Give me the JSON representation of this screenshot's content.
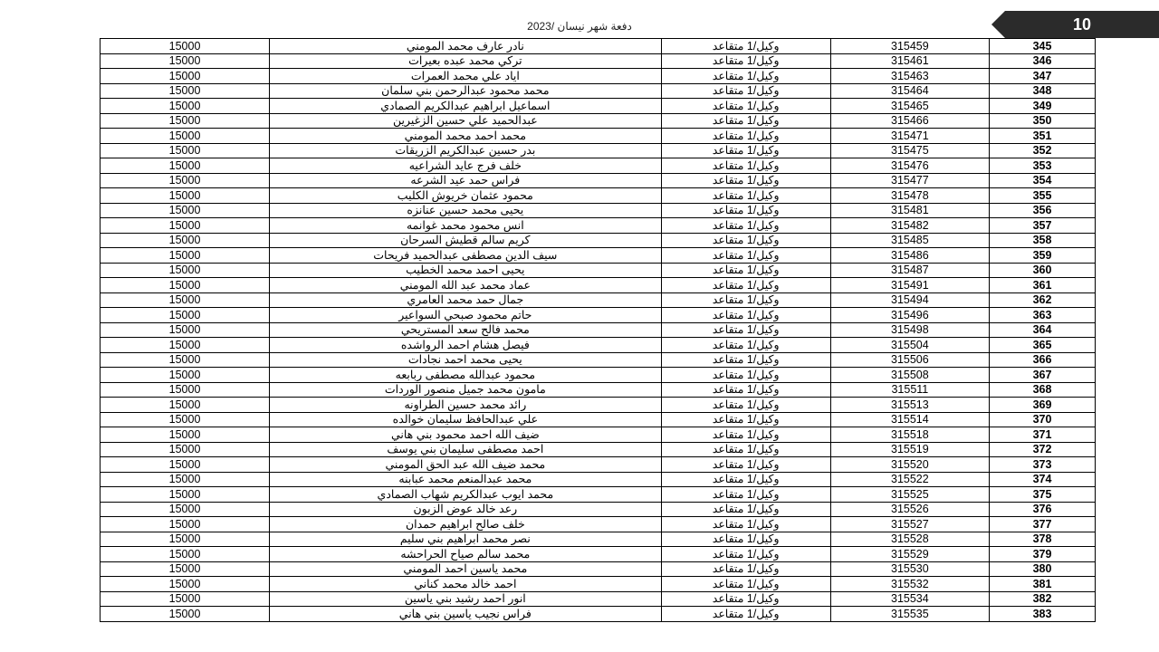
{
  "doc": {
    "title": "دفعة شهر نيسان /2023",
    "page_number": "10",
    "background": "#ffffff",
    "tag_bg": "#2b2b2b",
    "tag_fg": "#ffffff",
    "border_color": "#000000",
    "font_size": 12.5
  },
  "columns": [
    "amount",
    "name",
    "rank",
    "id",
    "index"
  ],
  "rows": [
    {
      "index": "345",
      "id": "315459",
      "rank": "وكيل/1 متقاعد",
      "name": "نادر عارف محمد المومني",
      "amount": "15000"
    },
    {
      "index": "346",
      "id": "315461",
      "rank": "وكيل/1 متقاعد",
      "name": "تركي محمد عبده بعيرات",
      "amount": "15000"
    },
    {
      "index": "347",
      "id": "315463",
      "rank": "وكيل/1 متقاعد",
      "name": "اياد علي محمد العمرات",
      "amount": "15000"
    },
    {
      "index": "348",
      "id": "315464",
      "rank": "وكيل/1 متقاعد",
      "name": "محمد محمود عبدالرحمن بني سلمان",
      "amount": "15000"
    },
    {
      "index": "349",
      "id": "315465",
      "rank": "وكيل/1 متقاعد",
      "name": "اسماعيل ابراهيم عبدالكريم الصمادي",
      "amount": "15000"
    },
    {
      "index": "350",
      "id": "315466",
      "rank": "وكيل/1 متقاعد",
      "name": "عبدالحميد علي حسين الزغيرين",
      "amount": "15000"
    },
    {
      "index": "351",
      "id": "315471",
      "rank": "وكيل/1 متقاعد",
      "name": "محمد احمد محمد المومني",
      "amount": "15000"
    },
    {
      "index": "352",
      "id": "315475",
      "rank": "وكيل/1 متقاعد",
      "name": "بدر حسين عبدالكريم الزريقات",
      "amount": "15000"
    },
    {
      "index": "353",
      "id": "315476",
      "rank": "وكيل/1 متقاعد",
      "name": "خلف فرج عايد الشراعيه",
      "amount": "15000"
    },
    {
      "index": "354",
      "id": "315477",
      "rank": "وكيل/1 متقاعد",
      "name": "فراس حمد عيد الشرعه",
      "amount": "15000"
    },
    {
      "index": "355",
      "id": "315478",
      "rank": "وكيل/1 متقاعد",
      "name": "محمود عثمان خريوش الكليب",
      "amount": "15000"
    },
    {
      "index": "356",
      "id": "315481",
      "rank": "وكيل/1 متقاعد",
      "name": "يحيى محمد حسين عنانزه",
      "amount": "15000"
    },
    {
      "index": "357",
      "id": "315482",
      "rank": "وكيل/1 متقاعد",
      "name": "انس محمود محمد غوانمه",
      "amount": "15000"
    },
    {
      "index": "358",
      "id": "315485",
      "rank": "وكيل/1 متقاعد",
      "name": "كريم سالم قطيش السرحان",
      "amount": "15000"
    },
    {
      "index": "359",
      "id": "315486",
      "rank": "وكيل/1 متقاعد",
      "name": "سيف الدين مصطفى عبدالحميد فريحات",
      "amount": "15000"
    },
    {
      "index": "360",
      "id": "315487",
      "rank": "وكيل/1 متقاعد",
      "name": "يحيى احمد محمد الخطيب",
      "amount": "15000"
    },
    {
      "index": "361",
      "id": "315491",
      "rank": "وكيل/1 متقاعد",
      "name": "عماد محمد عبد الله المومني",
      "amount": "15000"
    },
    {
      "index": "362",
      "id": "315494",
      "rank": "وكيل/1 متقاعد",
      "name": "جمال حمد محمد العامري",
      "amount": "15000"
    },
    {
      "index": "363",
      "id": "315496",
      "rank": "وكيل/1 متقاعد",
      "name": "حاتم محمود صبحي السواعير",
      "amount": "15000"
    },
    {
      "index": "364",
      "id": "315498",
      "rank": "وكيل/1 متقاعد",
      "name": "محمد فالح سعد المستريحي",
      "amount": "15000"
    },
    {
      "index": "365",
      "id": "315504",
      "rank": "وكيل/1 متقاعد",
      "name": "فيصل هشام احمد الرواشده",
      "amount": "15000"
    },
    {
      "index": "366",
      "id": "315506",
      "rank": "وكيل/1 متقاعد",
      "name": "يحيى محمد احمد نجادات",
      "amount": "15000"
    },
    {
      "index": "367",
      "id": "315508",
      "rank": "وكيل/1 متقاعد",
      "name": "محمود عبدالله مصطفى ربابعه",
      "amount": "15000"
    },
    {
      "index": "368",
      "id": "315511",
      "rank": "وكيل/1 متقاعد",
      "name": "مامون محمد جميل منصور الوردات",
      "amount": "15000"
    },
    {
      "index": "369",
      "id": "315513",
      "rank": "وكيل/1 متقاعد",
      "name": "رائد محمد حسين  الطراونه",
      "amount": "15000"
    },
    {
      "index": "370",
      "id": "315514",
      "rank": "وكيل/1 متقاعد",
      "name": "علي عبدالحافظ سليمان خوالده",
      "amount": "15000"
    },
    {
      "index": "371",
      "id": "315518",
      "rank": "وكيل/1 متقاعد",
      "name": "ضيف الله احمد محمود بني هاني",
      "amount": "15000"
    },
    {
      "index": "372",
      "id": "315519",
      "rank": "وكيل/1 متقاعد",
      "name": "احمد مصطفى سليمان بني يوسف",
      "amount": "15000"
    },
    {
      "index": "373",
      "id": "315520",
      "rank": "وكيل/1 متقاعد",
      "name": "محمد ضيف الله عبد الحق المومني",
      "amount": "15000"
    },
    {
      "index": "374",
      "id": "315522",
      "rank": "وكيل/1 متقاعد",
      "name": "محمد عبدالمنعم محمد عبابنه",
      "amount": "15000"
    },
    {
      "index": "375",
      "id": "315525",
      "rank": "وكيل/1 متقاعد",
      "name": "محمد ايوب عبدالكريم شهاب الصمادي",
      "amount": "15000"
    },
    {
      "index": "376",
      "id": "315526",
      "rank": "وكيل/1 متقاعد",
      "name": "رعد خالد عوض الزبون",
      "amount": "15000"
    },
    {
      "index": "377",
      "id": "315527",
      "rank": "وكيل/1 متقاعد",
      "name": "خلف صالح ابراهيم حمدان",
      "amount": "15000"
    },
    {
      "index": "378",
      "id": "315528",
      "rank": "وكيل/1 متقاعد",
      "name": "نصر محمد ابراهيم بني سليم",
      "amount": "15000"
    },
    {
      "index": "379",
      "id": "315529",
      "rank": "وكيل/1 متقاعد",
      "name": "محمد سالم صياح الحراحشه",
      "amount": "15000"
    },
    {
      "index": "380",
      "id": "315530",
      "rank": "وكيل/1 متقاعد",
      "name": "محمد ياسين احمد المومني",
      "amount": "15000"
    },
    {
      "index": "381",
      "id": "315532",
      "rank": "وكيل/1 متقاعد",
      "name": "احمد خالد محمد كناني",
      "amount": "15000"
    },
    {
      "index": "382",
      "id": "315534",
      "rank": "وكيل/1 متقاعد",
      "name": "انور احمد رشيد بني ياسين",
      "amount": "15000"
    },
    {
      "index": "383",
      "id": "315535",
      "rank": "وكيل/1 متقاعد",
      "name": "فراس نجيب ياسين  بني هاني",
      "amount": "15000"
    }
  ]
}
